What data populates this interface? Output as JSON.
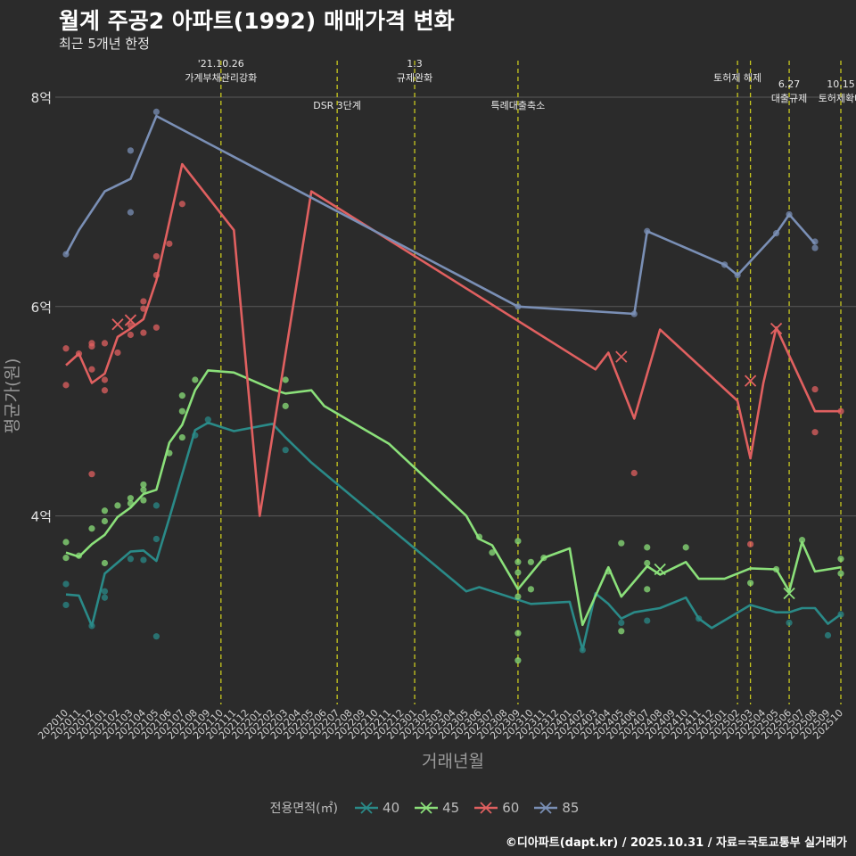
{
  "header": {
    "title": "월계 주공2 아파트(1992) 매매가격 변화",
    "subtitle": "최근 5개년 한정"
  },
  "caption": "©디아파트(dapt.kr) / 2025.10.31 / 자료=국토교통부 실거래가",
  "legend_title": "전용면적(㎡)",
  "chart_data": {
    "type": "line",
    "title": "월계 주공2 아파트(1992) 매매가격 변화",
    "xlabel": "거래년월",
    "ylabel": "평균가(원)",
    "ylim": [
      2.2,
      8.4
    ],
    "yticks": [
      {
        "v": 4,
        "label": "4억"
      },
      {
        "v": 6,
        "label": "6억"
      },
      {
        "v": 8,
        "label": "8억"
      }
    ],
    "months": [
      "202010",
      "202011",
      "202012",
      "202101",
      "202102",
      "202103",
      "202104",
      "202105",
      "202106",
      "202107",
      "202108",
      "202109",
      "202110",
      "202111",
      "202112",
      "202201",
      "202202",
      "202203",
      "202204",
      "202205",
      "202206",
      "202207",
      "202208",
      "202209",
      "202210",
      "202211",
      "202212",
      "202301",
      "202302",
      "202303",
      "202304",
      "202305",
      "202306",
      "202307",
      "202308",
      "202309",
      "202310",
      "202311",
      "202312",
      "202401",
      "202402",
      "202403",
      "202404",
      "202405",
      "202406",
      "202407",
      "202408",
      "202409",
      "202410",
      "202411",
      "202412",
      "202501",
      "202502",
      "202503",
      "202504",
      "202505",
      "202506",
      "202507",
      "202508",
      "202509",
      "202510"
    ],
    "events": [
      {
        "m": "202110",
        "lines": [
          "'21.10.26",
          "가계부채관리강화"
        ],
        "row": 0
      },
      {
        "m": "202207",
        "lines": [
          "DSR 3단계"
        ],
        "row": 1
      },
      {
        "m": "202301",
        "lines": [
          "1.3",
          "규제완화"
        ],
        "row": 0
      },
      {
        "m": "202309",
        "lines": [
          "특례대출축소"
        ],
        "row": 1
      },
      {
        "m": "202502",
        "lines": [
          "토허제 해제"
        ],
        "row": 0
      },
      {
        "m": "202503",
        "lines": [],
        "row": 0
      },
      {
        "m": "202506",
        "lines": [
          "6.27",
          "대출규제"
        ],
        "row": 2
      },
      {
        "m": "202510",
        "lines": [
          "10.15",
          "토허제확대"
        ],
        "row": 2
      }
    ],
    "series": [
      {
        "name": "40",
        "color": "#2a8a88",
        "points": [
          [
            "202010",
            3.25
          ],
          [
            "202011",
            3.24
          ],
          [
            "202012",
            2.95
          ],
          [
            "202101",
            3.45
          ],
          [
            "202103",
            3.66
          ],
          [
            "202104",
            3.67
          ],
          [
            "202105",
            3.57
          ],
          [
            "202106",
            3.98
          ],
          [
            "202108",
            4.82
          ],
          [
            "202109",
            4.89
          ],
          [
            "202111",
            4.81
          ],
          [
            "202202",
            4.88
          ],
          [
            "202203",
            4.75
          ],
          [
            "202205",
            4.51
          ],
          [
            "202305",
            3.28
          ],
          [
            "202306",
            3.32
          ],
          [
            "202310",
            3.16
          ],
          [
            "202401",
            3.18
          ],
          [
            "202402",
            2.72
          ],
          [
            "202403",
            3.26
          ],
          [
            "202404",
            3.16
          ],
          [
            "202405",
            3.02
          ],
          [
            "202406",
            3.08
          ],
          [
            "202408",
            3.12
          ],
          [
            "202410",
            3.22
          ],
          [
            "202411",
            3.02
          ],
          [
            "202412",
            2.93
          ],
          [
            "202503",
            3.15
          ],
          [
            "202505",
            3.08
          ],
          [
            "202506",
            3.08
          ],
          [
            "202507",
            3.12
          ],
          [
            "202508",
            3.12
          ],
          [
            "202509",
            2.97
          ],
          [
            "202510",
            3.06
          ]
        ],
        "scatter": [
          [
            "202010",
            3.15
          ],
          [
            "202010",
            3.35
          ],
          [
            "202012",
            2.95
          ],
          [
            "202101",
            3.28
          ],
          [
            "202101",
            3.22
          ],
          [
            "202103",
            3.59
          ],
          [
            "202104",
            3.58
          ],
          [
            "202105",
            2.85
          ],
          [
            "202105",
            3.78
          ],
          [
            "202105",
            4.1
          ],
          [
            "202108",
            4.77
          ],
          [
            "202109",
            4.92
          ],
          [
            "202203",
            4.63
          ],
          [
            "202402",
            2.72
          ],
          [
            "202405",
            2.98
          ],
          [
            "202407",
            3.0
          ],
          [
            "202411",
            3.02
          ],
          [
            "202506",
            2.98
          ],
          [
            "202509",
            2.86
          ],
          [
            "202510",
            3.06
          ]
        ],
        "cross": []
      },
      {
        "name": "45",
        "color": "#8be07a",
        "points": [
          [
            "202010",
            3.65
          ],
          [
            "202011",
            3.61
          ],
          [
            "202012",
            3.73
          ],
          [
            "202101",
            3.82
          ],
          [
            "202102",
            3.99
          ],
          [
            "202103",
            4.08
          ],
          [
            "202104",
            4.21
          ],
          [
            "202105",
            4.25
          ],
          [
            "202106",
            4.7
          ],
          [
            "202107",
            4.87
          ],
          [
            "202108",
            5.2
          ],
          [
            "202109",
            5.39
          ],
          [
            "202111",
            5.37
          ],
          [
            "202202",
            5.21
          ],
          [
            "202203",
            5.17
          ],
          [
            "202205",
            5.2
          ],
          [
            "202206",
            5.05
          ],
          [
            "202211",
            4.69
          ],
          [
            "202305",
            4.0
          ],
          [
            "202306",
            3.78
          ],
          [
            "202307",
            3.72
          ],
          [
            "202309",
            3.3
          ],
          [
            "202311",
            3.6
          ],
          [
            "202401",
            3.69
          ],
          [
            "202402",
            2.96
          ],
          [
            "202404",
            3.51
          ],
          [
            "202405",
            3.23
          ],
          [
            "202407",
            3.52
          ],
          [
            "202408",
            3.44
          ],
          [
            "202410",
            3.56
          ],
          [
            "202411",
            3.4
          ],
          [
            "202501",
            3.4
          ],
          [
            "202503",
            3.5
          ],
          [
            "202505",
            3.49
          ],
          [
            "202506",
            3.28
          ],
          [
            "202507",
            3.75
          ],
          [
            "202508",
            3.47
          ],
          [
            "202510",
            3.51
          ]
        ],
        "scatter": [
          [
            "202010",
            3.6
          ],
          [
            "202010",
            3.75
          ],
          [
            "202011",
            3.62
          ],
          [
            "202012",
            3.88
          ],
          [
            "202101",
            3.95
          ],
          [
            "202101",
            4.05
          ],
          [
            "202101",
            3.55
          ],
          [
            "202102",
            4.1
          ],
          [
            "202103",
            4.12
          ],
          [
            "202103",
            4.17
          ],
          [
            "202104",
            4.25
          ],
          [
            "202104",
            4.3
          ],
          [
            "202104",
            4.15
          ],
          [
            "202106",
            4.6
          ],
          [
            "202107",
            4.75
          ],
          [
            "202107",
            5.0
          ],
          [
            "202107",
            5.15
          ],
          [
            "202108",
            5.3
          ],
          [
            "202203",
            5.3
          ],
          [
            "202203",
            5.05
          ],
          [
            "202306",
            3.8
          ],
          [
            "202307",
            3.65
          ],
          [
            "202309",
            3.76
          ],
          [
            "202309",
            3.56
          ],
          [
            "202309",
            3.46
          ],
          [
            "202309",
            3.23
          ],
          [
            "202309",
            2.88
          ],
          [
            "202309",
            2.62
          ],
          [
            "202310",
            3.3
          ],
          [
            "202310",
            3.56
          ],
          [
            "202311",
            3.6
          ],
          [
            "202404",
            3.47
          ],
          [
            "202405",
            3.74
          ],
          [
            "202405",
            2.9
          ],
          [
            "202407",
            3.55
          ],
          [
            "202407",
            3.7
          ],
          [
            "202407",
            3.3
          ],
          [
            "202410",
            3.7
          ],
          [
            "202503",
            3.36
          ],
          [
            "202505",
            3.49
          ],
          [
            "202507",
            3.77
          ],
          [
            "202510",
            3.59
          ],
          [
            "202510",
            3.45
          ]
        ],
        "cross": [
          [
            "202408",
            3.49
          ],
          [
            "202506",
            3.26
          ]
        ]
      },
      {
        "name": "60",
        "color": "#e06060",
        "points": [
          [
            "202010",
            5.44
          ],
          [
            "202011",
            5.55
          ],
          [
            "202012",
            5.27
          ],
          [
            "202101",
            5.36
          ],
          [
            "202102",
            5.71
          ],
          [
            "202103",
            5.79
          ],
          [
            "202104",
            5.88
          ],
          [
            "202105",
            6.25
          ],
          [
            "202107",
            7.36
          ],
          [
            "202111",
            6.73
          ],
          [
            "202201",
            4.0
          ],
          [
            "202205",
            7.1
          ],
          [
            "202403",
            5.4
          ],
          [
            "202404",
            5.56
          ],
          [
            "202406",
            4.93
          ],
          [
            "202408",
            5.78
          ],
          [
            "202502",
            5.1
          ],
          [
            "202503",
            4.55
          ],
          [
            "202504",
            5.27
          ],
          [
            "202505",
            5.8
          ],
          [
            "202508",
            5.0
          ],
          [
            "202510",
            5.0
          ]
        ],
        "scatter": [
          [
            "202010",
            5.6
          ],
          [
            "202010",
            5.25
          ],
          [
            "202011",
            5.55
          ],
          [
            "202012",
            5.65
          ],
          [
            "202012",
            5.62
          ],
          [
            "202012",
            5.4
          ],
          [
            "202012",
            4.4
          ],
          [
            "202101",
            5.65
          ],
          [
            "202101",
            5.3
          ],
          [
            "202101",
            5.2
          ],
          [
            "202102",
            5.56
          ],
          [
            "202103",
            5.73
          ],
          [
            "202103",
            5.82
          ],
          [
            "202104",
            5.75
          ],
          [
            "202104",
            5.98
          ],
          [
            "202104",
            6.05
          ],
          [
            "202105",
            6.3
          ],
          [
            "202105",
            6.48
          ],
          [
            "202105",
            5.8
          ],
          [
            "202106",
            6.6
          ],
          [
            "202107",
            6.98
          ],
          [
            "202406",
            4.41
          ],
          [
            "202503",
            3.73
          ],
          [
            "202508",
            5.21
          ],
          [
            "202508",
            4.8
          ],
          [
            "202510",
            5.0
          ]
        ],
        "cross": [
          [
            "202102",
            5.83
          ],
          [
            "202103",
            5.87
          ],
          [
            "202405",
            5.52
          ],
          [
            "202503",
            5.29
          ],
          [
            "202505",
            5.79
          ]
        ]
      },
      {
        "name": "85",
        "color": "#7a8fb5",
        "points": [
          [
            "202010",
            6.5
          ],
          [
            "202011",
            6.73
          ],
          [
            "202101",
            7.1
          ],
          [
            "202103",
            7.22
          ],
          [
            "202105",
            7.82
          ],
          [
            "202309",
            6.0
          ],
          [
            "202406",
            5.93
          ],
          [
            "202407",
            6.72
          ],
          [
            "202501",
            6.4
          ],
          [
            "202502",
            6.3
          ],
          [
            "202505",
            6.7
          ],
          [
            "202506",
            6.88
          ],
          [
            "202508",
            6.6
          ]
        ],
        "scatter": [
          [
            "202010",
            6.5
          ],
          [
            "202103",
            7.49
          ],
          [
            "202103",
            6.9
          ],
          [
            "202105",
            7.86
          ],
          [
            "202309",
            6.0
          ],
          [
            "202406",
            5.93
          ],
          [
            "202407",
            6.72
          ],
          [
            "202501",
            6.4
          ],
          [
            "202502",
            6.3
          ],
          [
            "202505",
            6.7
          ],
          [
            "202506",
            6.88
          ],
          [
            "202508",
            6.62
          ],
          [
            "202508",
            6.56
          ]
        ],
        "cross": []
      }
    ]
  }
}
